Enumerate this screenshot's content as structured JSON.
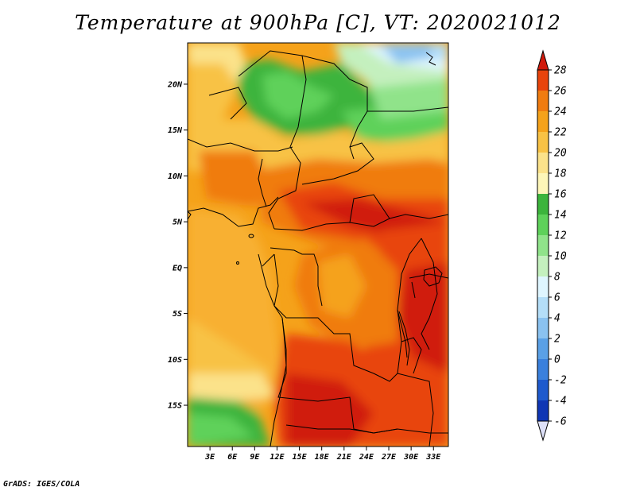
{
  "title": "Temperature at 900hPa [C], VT: 2020021012",
  "credit": "GrADS: IGES/COLA",
  "map": {
    "lon_range": [
      0,
      35
    ],
    "lat_range": [
      -19.5,
      24.5
    ],
    "lon_ticks": [
      "3E",
      "6E",
      "9E",
      "12E",
      "15E",
      "18E",
      "21E",
      "24E",
      "27E",
      "30E",
      "33E"
    ],
    "lon_values": [
      3,
      6,
      9,
      12,
      15,
      18,
      21,
      24,
      27,
      30,
      33
    ],
    "lat_ticks": [
      "20N",
      "15N",
      "10N",
      "5N",
      "EQ",
      "5S",
      "10S",
      "15S"
    ],
    "lat_values": [
      20,
      15,
      10,
      5,
      0,
      -5,
      -10,
      -15
    ]
  },
  "colorbar": {
    "labels": [
      "28",
      "26",
      "24",
      "22",
      "20",
      "18",
      "16",
      "14",
      "12",
      "10",
      "8",
      "6",
      "4",
      "2",
      "0",
      "-2",
      "-4",
      "-6"
    ],
    "colors": [
      "#d01a0c",
      "#e8440c",
      "#f07c10",
      "#f5a21a",
      "#f8c245",
      "#fbe28a",
      "#fdf6b8",
      "#3cb43c",
      "#5ed15a",
      "#90e38a",
      "#c4f0be",
      "#dff6ff",
      "#b4def8",
      "#8ac2f0",
      "#5aa0e6",
      "#3a80dc",
      "#1e5acd",
      "#0f36b4",
      "#08208c"
    ]
  }
}
